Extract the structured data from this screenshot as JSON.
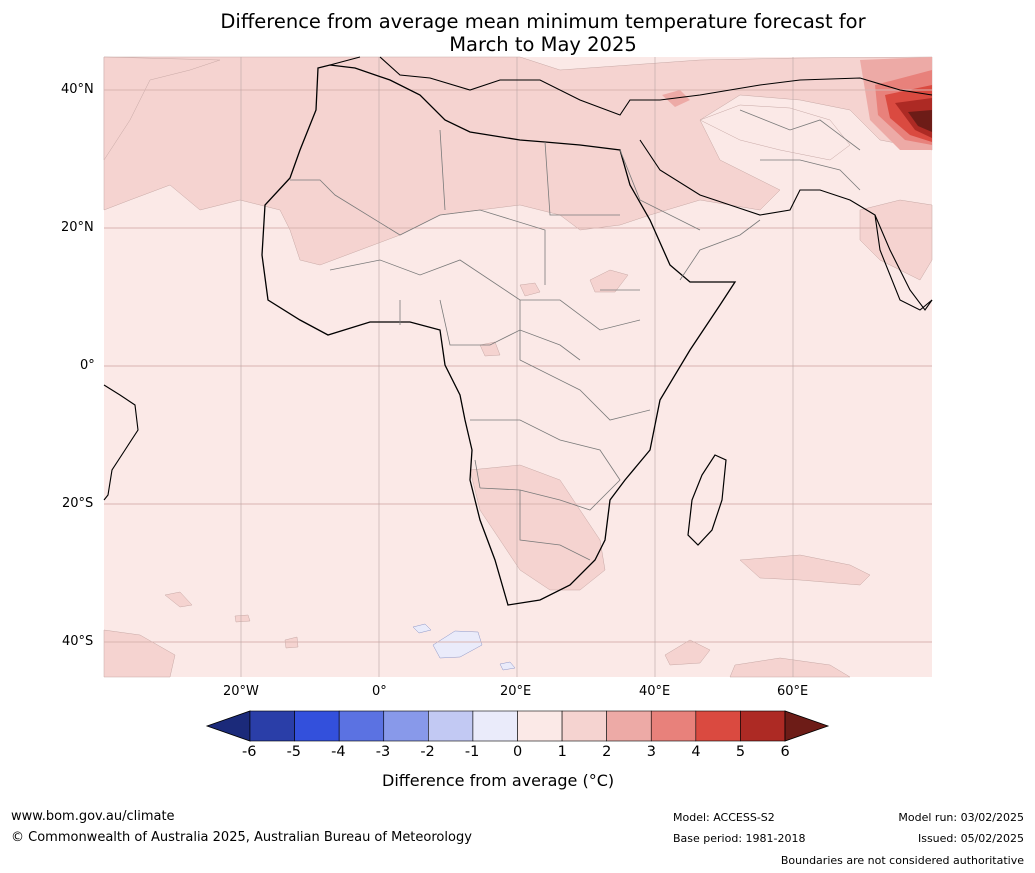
{
  "title": {
    "line1": "Difference from average mean minimum temperature forecast for",
    "line2": "March to May 2025"
  },
  "map": {
    "lat_labels": [
      "40°N",
      "20°N",
      "0°",
      "20°S",
      "40°S"
    ],
    "lon_labels": [
      "20°W",
      "0°",
      "20°E",
      "40°E",
      "60°E"
    ]
  },
  "colorbar": {
    "ticks": [
      "-6",
      "-5",
      "-4",
      "-3",
      "-2",
      "-1",
      "0",
      "1",
      "2",
      "3",
      "4",
      "5",
      "6"
    ],
    "colors": [
      "#1b2a7a",
      "#2a3ea8",
      "#3350dc",
      "#5b72e2",
      "#8899ea",
      "#c2c9f3",
      "#eaebfa",
      "#fbe9e7",
      "#f5d3d0",
      "#edaaa6",
      "#e8817b",
      "#da4a40",
      "#ad2a24",
      "#6d1c17"
    ],
    "label": "Difference from average (°C)"
  },
  "footer": {
    "url": "www.bom.gov.au/climate",
    "copyright": "© Commonwealth of Australia 2025, Australian Bureau of Meteorology",
    "model": "Model: ACCESS-S2",
    "base_period": "Base period: 1981-2018",
    "model_run": "Model run: 03/02/2025",
    "issued": "Issued: 05/02/2025",
    "disclaimer": "Boundaries are not considered authoritative"
  }
}
